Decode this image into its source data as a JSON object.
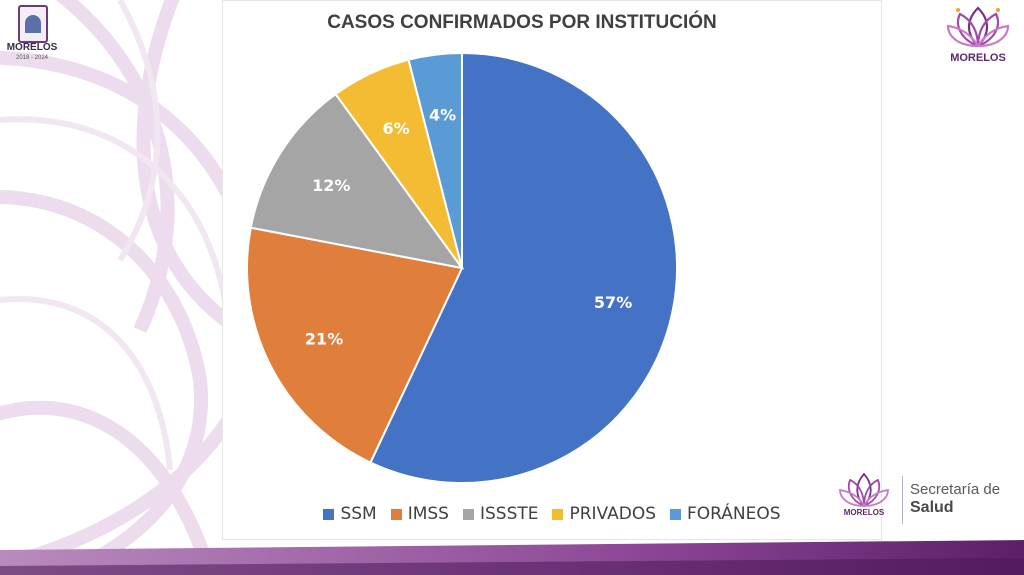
{
  "header": {
    "left_logo_name": "MORELOS",
    "left_logo_years": "2018 - 2024",
    "right_logo_name": "MORELOS"
  },
  "footer": {
    "logo_name": "MORELOS",
    "dept_line1": "Secretaría de",
    "dept_line2": "Salud"
  },
  "colors": {
    "SSM": "#4472c4",
    "IMSS": "#e07e3c",
    "ISSSTE": "#a5a5a5",
    "PRIVADOS": "#f4bc33",
    "FORANEOS": "#5b9bd5",
    "brand_purple": "#6a2d7a"
  },
  "chart_data": {
    "type": "pie",
    "title": "CASOS CONFIRMADOS POR INSTITUCIÓN",
    "categories": [
      "SSM",
      "IMSS",
      "ISSSTE",
      "PRIVADOS",
      "FORÁNEOS"
    ],
    "values": [
      57,
      21,
      12,
      6,
      4
    ],
    "labels": [
      "57%",
      "21%",
      "12%",
      "6%",
      "4%"
    ],
    "unit": "%",
    "legend_position": "bottom",
    "start": "top, clockwise"
  }
}
